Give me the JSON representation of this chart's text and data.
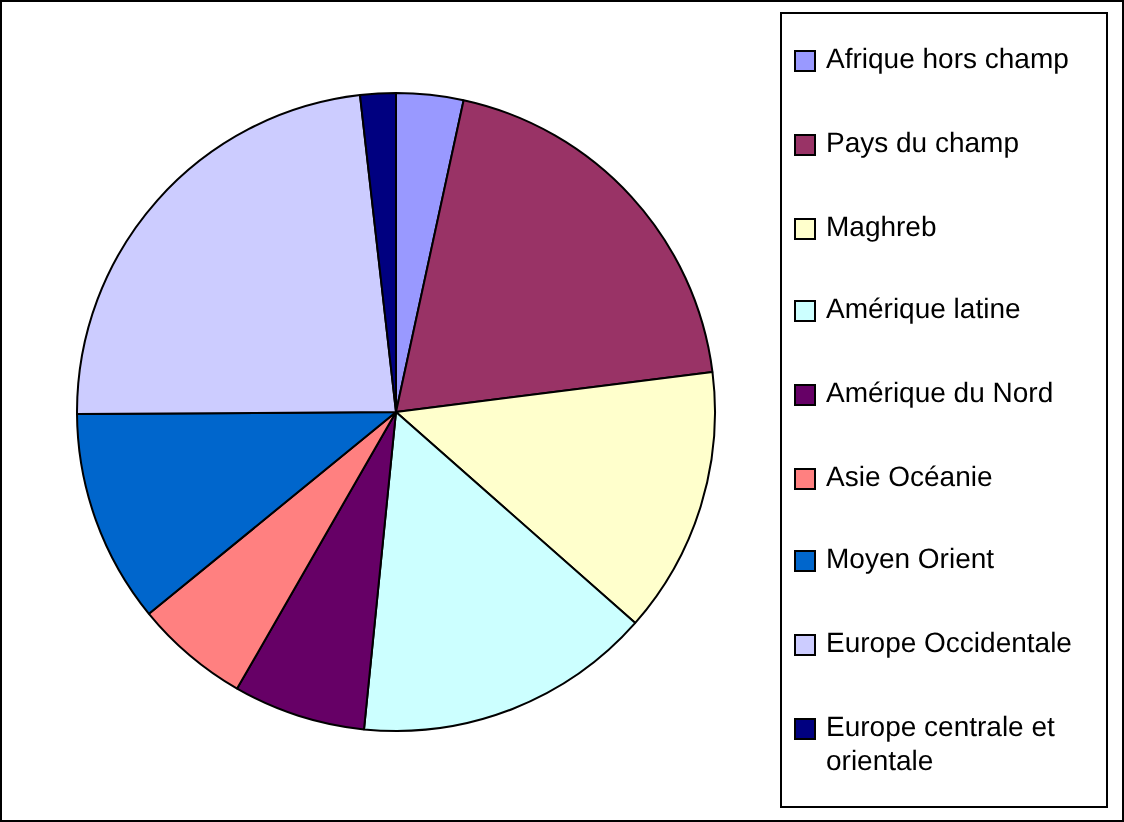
{
  "chart_data": {
    "type": "pie",
    "categories": [
      "Afrique hors champ",
      "Pays du champ",
      "Maghreb",
      "Amérique latine",
      "Amérique du Nord",
      "Asie Océanie",
      "Moyen Orient",
      "Europe Occidentale",
      "Europe centrale et orientale"
    ],
    "values": [
      3.4,
      19.6,
      13.5,
      15.1,
      6.7,
      5.8,
      10.8,
      23.3,
      1.8
    ],
    "colors": [
      "#9999ff",
      "#993366",
      "#ffffcc",
      "#ccffff",
      "#660066",
      "#ff8080",
      "#0066cc",
      "#ccccff",
      "#000080"
    ],
    "legend": "right"
  }
}
